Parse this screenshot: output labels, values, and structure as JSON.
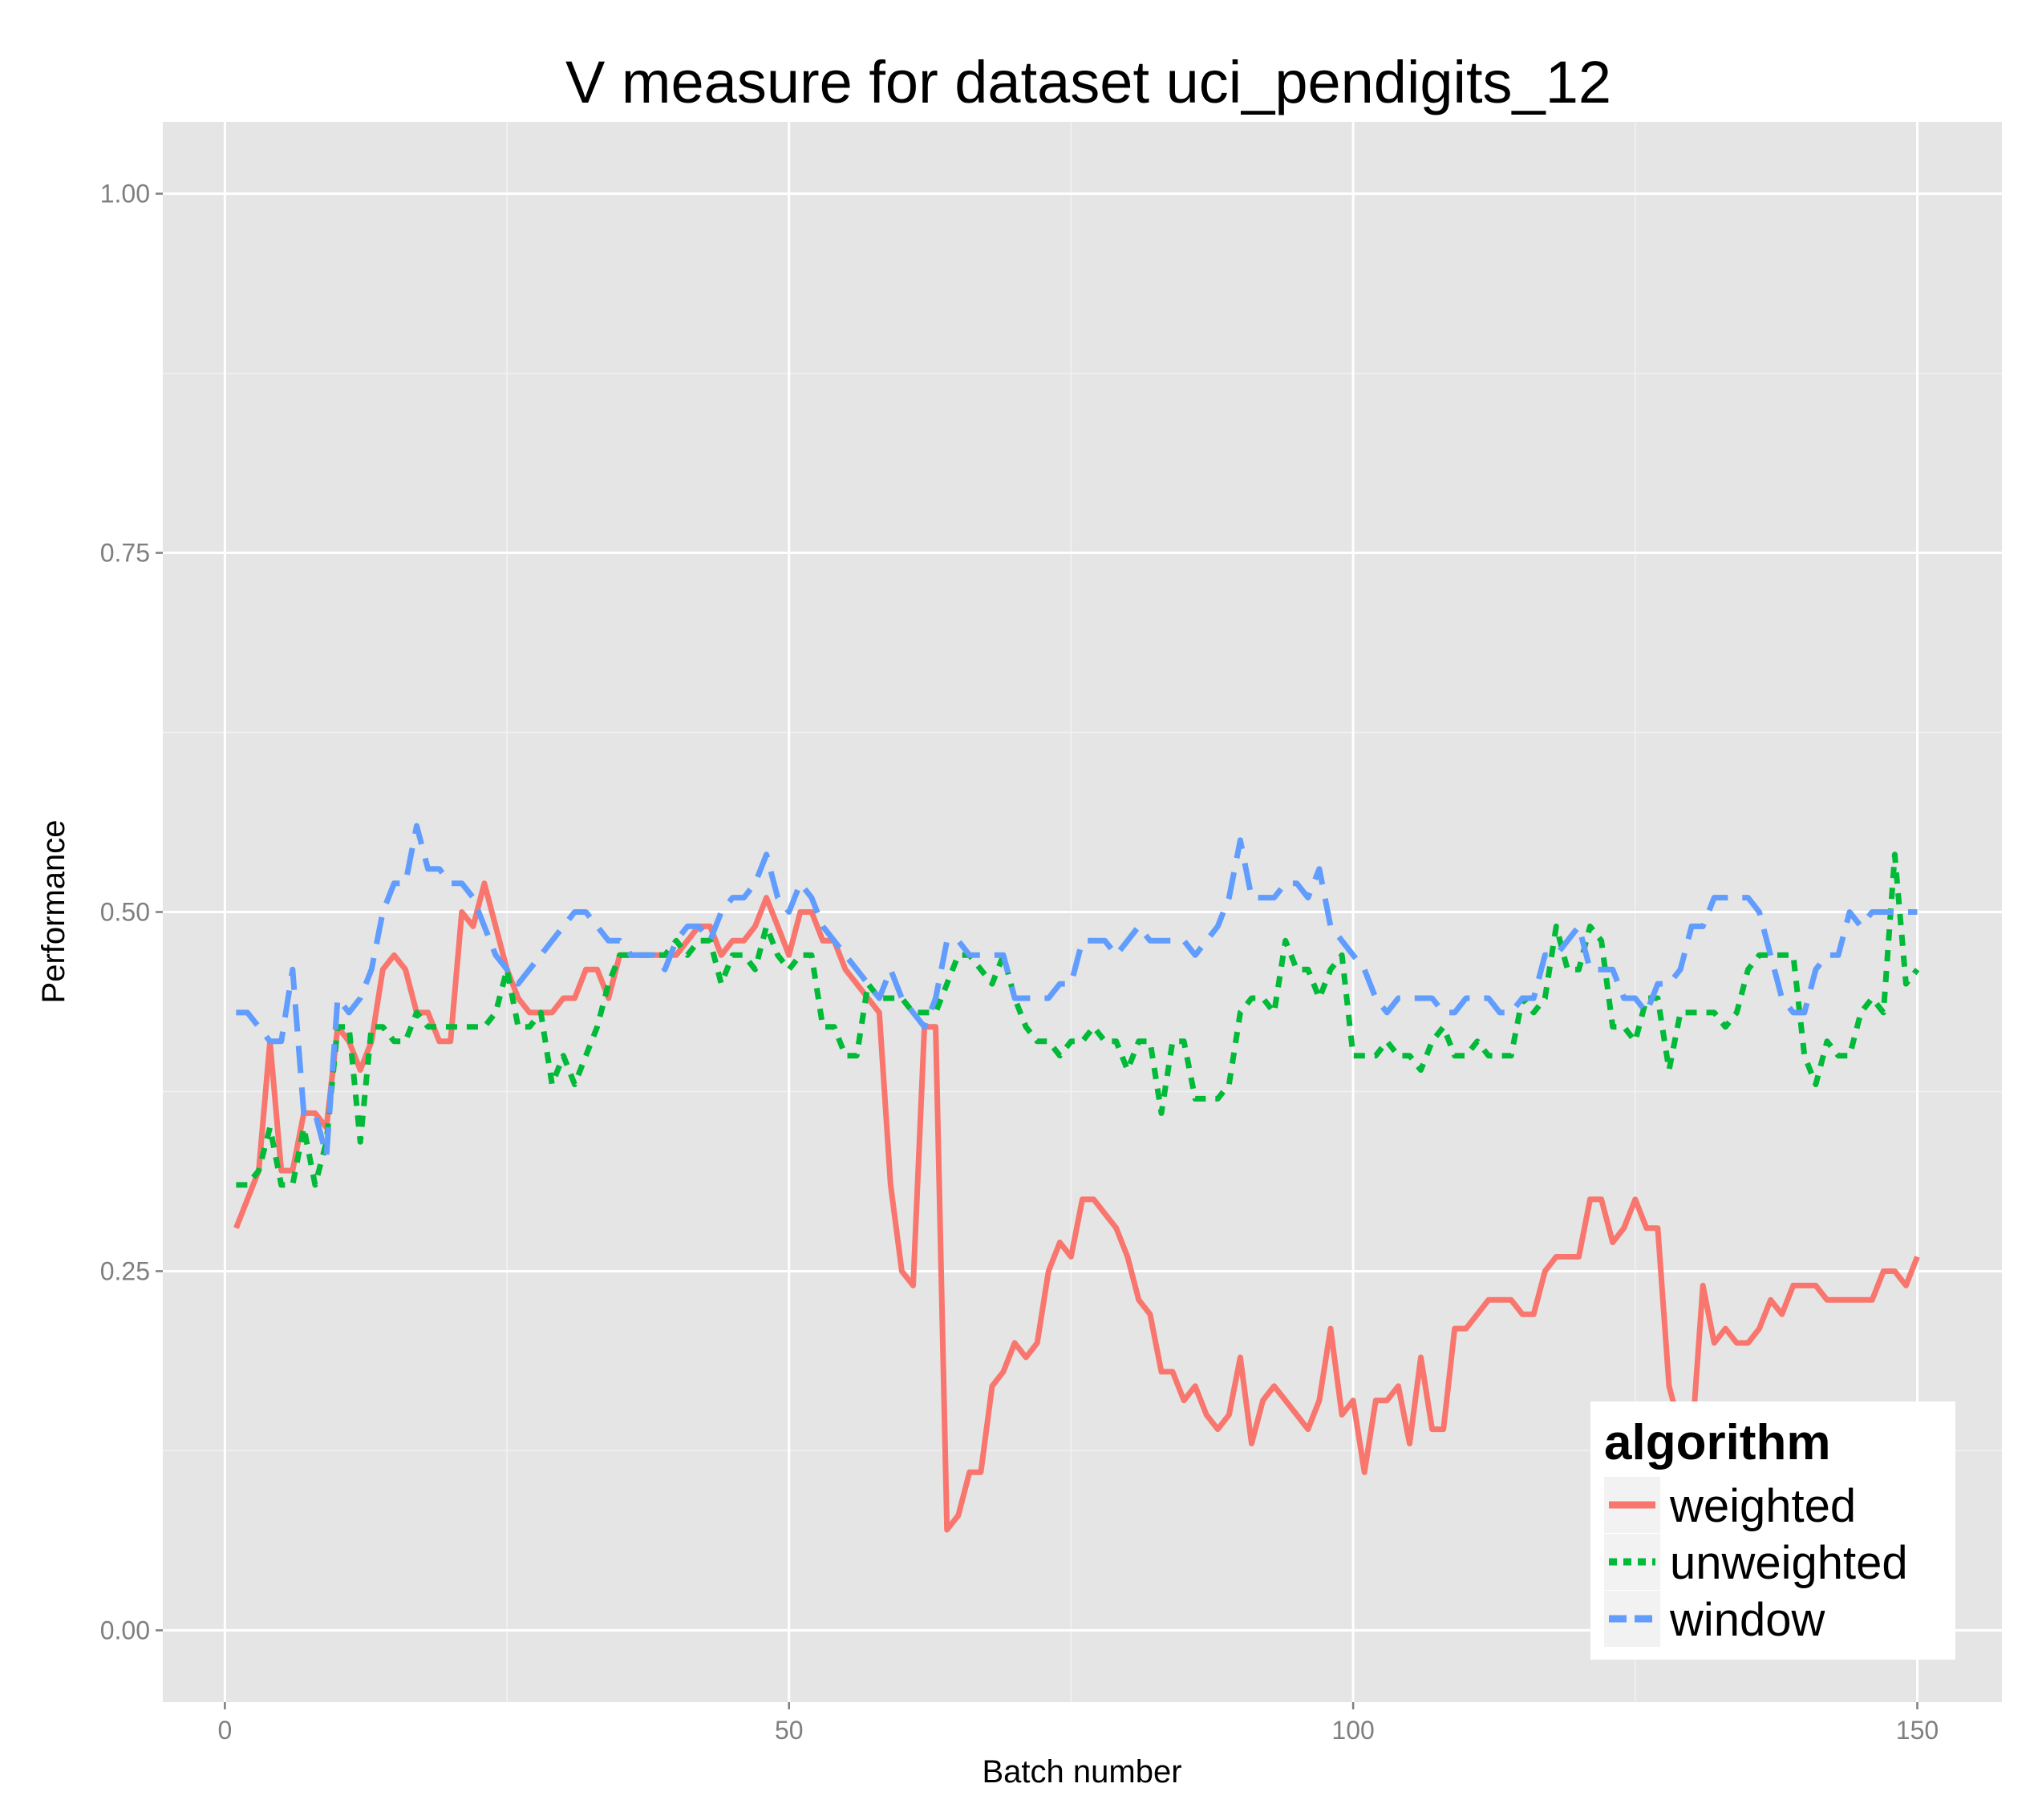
{
  "chart_data": {
    "type": "line",
    "title": "V measure for dataset uci_pendigits_12",
    "xlabel": "Batch number",
    "ylabel": "Performance",
    "xlim": [
      -5.5,
      157.5
    ],
    "ylim": [
      -0.05,
      1.05
    ],
    "x_ticks": [
      0,
      50,
      100,
      150
    ],
    "x_tick_labels": [
      "0",
      "50",
      "100",
      "150"
    ],
    "y_ticks": [
      0,
      0.25,
      0.5,
      0.75,
      1.0
    ],
    "y_tick_labels": [
      "0.00",
      "0.25",
      "0.50",
      "0.75",
      "1.00"
    ],
    "grid": true,
    "legend": {
      "title": "algorithm",
      "position": "bottom-right"
    },
    "x": [
      1,
      2,
      3,
      4,
      5,
      6,
      7,
      8,
      9,
      10,
      11,
      12,
      13,
      14,
      15,
      16,
      17,
      18,
      19,
      20,
      21,
      22,
      23,
      24,
      25,
      26,
      27,
      28,
      29,
      30,
      31,
      32,
      33,
      34,
      35,
      36,
      37,
      38,
      39,
      40,
      41,
      42,
      43,
      44,
      45,
      46,
      47,
      48,
      49,
      50,
      51,
      52,
      53,
      54,
      55,
      56,
      57,
      58,
      59,
      60,
      61,
      62,
      63,
      64,
      65,
      66,
      67,
      68,
      69,
      70,
      71,
      72,
      73,
      74,
      75,
      76,
      77,
      78,
      79,
      80,
      81,
      82,
      83,
      84,
      85,
      86,
      87,
      88,
      89,
      90,
      91,
      92,
      93,
      94,
      95,
      96,
      97,
      98,
      99,
      100,
      101,
      102,
      103,
      104,
      105,
      106,
      107,
      108,
      109,
      110,
      111,
      112,
      113,
      114,
      115,
      116,
      117,
      118,
      119,
      120,
      121,
      122,
      123,
      124,
      125,
      126,
      127,
      128,
      129,
      130,
      131,
      132,
      133,
      134,
      135,
      136,
      137,
      138,
      139,
      140,
      141,
      142,
      143,
      144,
      145,
      146,
      147,
      148,
      149,
      150
    ],
    "series": [
      {
        "name": "weighted",
        "color": "#F8766D",
        "dash": "solid",
        "values": [
          0.28,
          0.3,
          0.32,
          0.41,
          0.32,
          0.32,
          0.36,
          0.36,
          0.35,
          0.42,
          0.41,
          0.39,
          0.41,
          0.46,
          0.47,
          0.46,
          0.43,
          0.43,
          0.41,
          0.41,
          0.5,
          0.49,
          0.52,
          0.49,
          0.46,
          0.44,
          0.43,
          0.43,
          0.43,
          0.44,
          0.44,
          0.46,
          0.46,
          0.44,
          0.47,
          0.47,
          0.47,
          0.47,
          0.47,
          0.47,
          0.48,
          0.49,
          0.49,
          0.47,
          0.48,
          0.48,
          0.49,
          0.51,
          0.49,
          0.47,
          0.5,
          0.5,
          0.48,
          0.48,
          0.46,
          0.45,
          0.44,
          0.43,
          0.31,
          0.25,
          0.24,
          0.42,
          0.42,
          0.07,
          0.08,
          0.11,
          0.11,
          0.17,
          0.18,
          0.2,
          0.19,
          0.2,
          0.25,
          0.27,
          0.26,
          0.3,
          0.3,
          0.29,
          0.28,
          0.26,
          0.23,
          0.22,
          0.18,
          0.18,
          0.16,
          0.17,
          0.15,
          0.14,
          0.15,
          0.19,
          0.13,
          0.16,
          0.17,
          0.16,
          0.15,
          0.14,
          0.16,
          0.21,
          0.15,
          0.16,
          0.11,
          0.16,
          0.16,
          0.17,
          0.13,
          0.19,
          0.14,
          0.14,
          0.21,
          0.21,
          0.22,
          0.23,
          0.23,
          0.23,
          0.22,
          0.22,
          0.25,
          0.26,
          0.26,
          0.26,
          0.3,
          0.3,
          0.27,
          0.28,
          0.3,
          0.28,
          0.28,
          0.17,
          0.14,
          0.13,
          0.24,
          0.2,
          0.21,
          0.2,
          0.2,
          0.21,
          0.23,
          0.22,
          0.24,
          0.24,
          0.24,
          0.23,
          0.23,
          0.23,
          0.23,
          0.23,
          0.25,
          0.25,
          0.24,
          0.26
        ]
      },
      {
        "name": "unweighted",
        "color": "#00BA38",
        "dash": "dotted",
        "values": [
          0.31,
          0.31,
          0.32,
          0.35,
          0.31,
          0.31,
          0.35,
          0.31,
          0.34,
          0.42,
          0.42,
          0.34,
          0.42,
          0.42,
          0.41,
          0.41,
          0.43,
          0.42,
          0.42,
          0.42,
          0.42,
          0.42,
          0.42,
          0.43,
          0.46,
          0.42,
          0.42,
          0.43,
          0.38,
          0.4,
          0.38,
          0.4,
          0.42,
          0.45,
          0.47,
          0.47,
          0.47,
          0.47,
          0.47,
          0.48,
          0.47,
          0.48,
          0.48,
          0.45,
          0.47,
          0.47,
          0.46,
          0.49,
          0.47,
          0.46,
          0.47,
          0.47,
          0.42,
          0.42,
          0.4,
          0.4,
          0.45,
          0.44,
          0.44,
          0.44,
          0.43,
          0.43,
          0.43,
          0.45,
          0.47,
          0.47,
          0.46,
          0.45,
          0.47,
          0.44,
          0.42,
          0.41,
          0.41,
          0.4,
          0.41,
          0.41,
          0.42,
          0.41,
          0.41,
          0.39,
          0.41,
          0.41,
          0.36,
          0.41,
          0.41,
          0.37,
          0.37,
          0.37,
          0.38,
          0.43,
          0.44,
          0.44,
          0.43,
          0.48,
          0.46,
          0.46,
          0.44,
          0.46,
          0.47,
          0.4,
          0.4,
          0.4,
          0.41,
          0.4,
          0.4,
          0.39,
          0.41,
          0.42,
          0.4,
          0.4,
          0.41,
          0.4,
          0.4,
          0.4,
          0.44,
          0.43,
          0.44,
          0.49,
          0.46,
          0.46,
          0.49,
          0.48,
          0.42,
          0.42,
          0.41,
          0.44,
          0.44,
          0.39,
          0.43,
          0.43,
          0.43,
          0.43,
          0.42,
          0.43,
          0.46,
          0.47,
          0.47,
          0.47,
          0.47,
          0.4,
          0.38,
          0.41,
          0.4,
          0.4,
          0.43,
          0.44,
          0.43,
          0.54,
          0.45,
          0.46
        ]
      },
      {
        "name": "window",
        "color": "#619CFF",
        "dash": "dashed",
        "values": [
          0.43,
          0.43,
          0.42,
          0.41,
          0.41,
          0.46,
          0.36,
          0.36,
          0.33,
          0.44,
          0.43,
          0.44,
          0.46,
          0.5,
          0.52,
          0.52,
          0.56,
          0.53,
          0.53,
          0.52,
          0.52,
          0.51,
          0.49,
          0.47,
          0.46,
          0.45,
          0.46,
          0.47,
          0.48,
          0.49,
          0.5,
          0.5,
          0.49,
          0.48,
          0.48,
          0.47,
          0.47,
          0.47,
          0.46,
          0.48,
          0.49,
          0.49,
          0.48,
          0.5,
          0.51,
          0.51,
          0.52,
          0.54,
          0.51,
          0.5,
          0.52,
          0.51,
          0.49,
          0.48,
          0.47,
          0.46,
          0.45,
          0.44,
          0.46,
          0.44,
          0.43,
          0.42,
          0.44,
          0.48,
          0.48,
          0.47,
          0.47,
          0.47,
          0.47,
          0.44,
          0.44,
          0.44,
          0.44,
          0.45,
          0.45,
          0.48,
          0.48,
          0.48,
          0.47,
          0.48,
          0.49,
          0.48,
          0.48,
          0.48,
          0.48,
          0.47,
          0.48,
          0.49,
          0.51,
          0.55,
          0.51,
          0.51,
          0.51,
          0.52,
          0.52,
          0.51,
          0.53,
          0.49,
          0.48,
          0.47,
          0.46,
          0.44,
          0.43,
          0.44,
          0.44,
          0.44,
          0.44,
          0.43,
          0.43,
          0.44,
          0.44,
          0.44,
          0.43,
          0.43,
          0.44,
          0.44,
          0.47,
          0.47,
          0.48,
          0.49,
          0.46,
          0.46,
          0.46,
          0.44,
          0.44,
          0.43,
          0.45,
          0.45,
          0.46,
          0.49,
          0.49,
          0.51,
          0.51,
          0.51,
          0.51,
          0.5,
          0.47,
          0.44,
          0.43,
          0.43,
          0.46,
          0.47,
          0.47,
          0.5,
          0.49,
          0.5,
          0.5,
          0.5,
          0.5,
          0.5
        ]
      }
    ]
  }
}
